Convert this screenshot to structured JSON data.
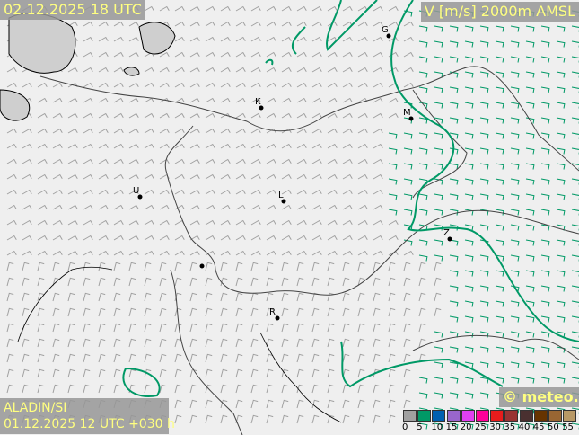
{
  "header": {
    "valid_time": "02.12.2025 18 UTC",
    "parameter": "V [m/s] 2000m AMSL"
  },
  "footer": {
    "model": "ALADIN/SI",
    "run": "01.12.2025 12 UTC +030 h",
    "copyright": "© meteo.si"
  },
  "legend": {
    "ticks": [
      "0",
      "5",
      "10",
      "15",
      "20",
      "25",
      "30",
      "35",
      "40",
      "45",
      "50",
      "55"
    ],
    "colors": [
      "#a0a0a0",
      "#009966",
      "#0060b0",
      "#9966cc",
      "#e040f0",
      "#ff0099",
      "#e81c1c",
      "#993333",
      "#4a3030",
      "#663300",
      "#996633",
      "#b89966"
    ]
  },
  "cities": [
    {
      "label": "G"
    },
    {
      "label": "K"
    },
    {
      "label": "M"
    },
    {
      "label": "U"
    },
    {
      "label": "L"
    },
    {
      "label": "Z"
    },
    {
      "label": "R"
    }
  ],
  "colors": {
    "background": "#efefef",
    "barb_weak": "#a0a0a0",
    "barb_moderate": "#009966",
    "contour": "#009966",
    "border": "#333333",
    "label_text": "#ffff80"
  }
}
